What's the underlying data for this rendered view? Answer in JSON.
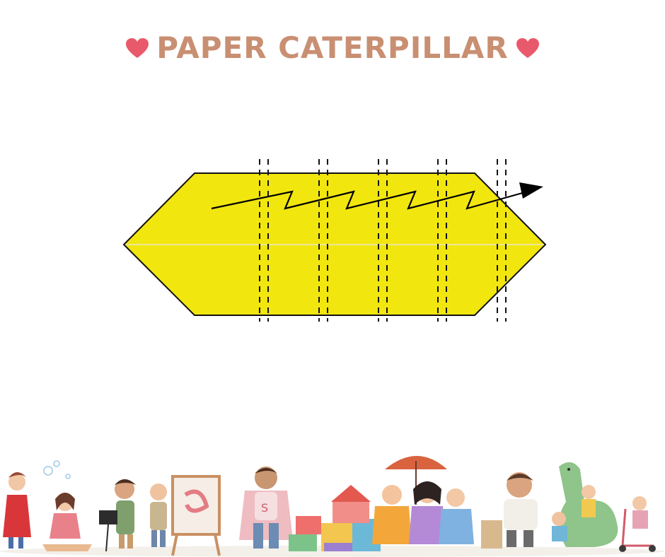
{
  "title": "PAPER CATERPILLAR",
  "icons": {
    "left_heart": "heart-icon",
    "right_heart": "heart-icon"
  },
  "colors": {
    "title": "#c98f72",
    "heart": "#e85a6b",
    "paper_fill": "#f2e60f",
    "outline": "#111111",
    "arrow": "#000000"
  },
  "diagram": {
    "shape": "elongated hexagon paper strip",
    "fold_line": "horizontal center crease",
    "cut_line_pairs": 5,
    "arrow": "zigzag accordion fold direction"
  },
  "footer": {
    "illustration": "watercolor children playing border"
  }
}
